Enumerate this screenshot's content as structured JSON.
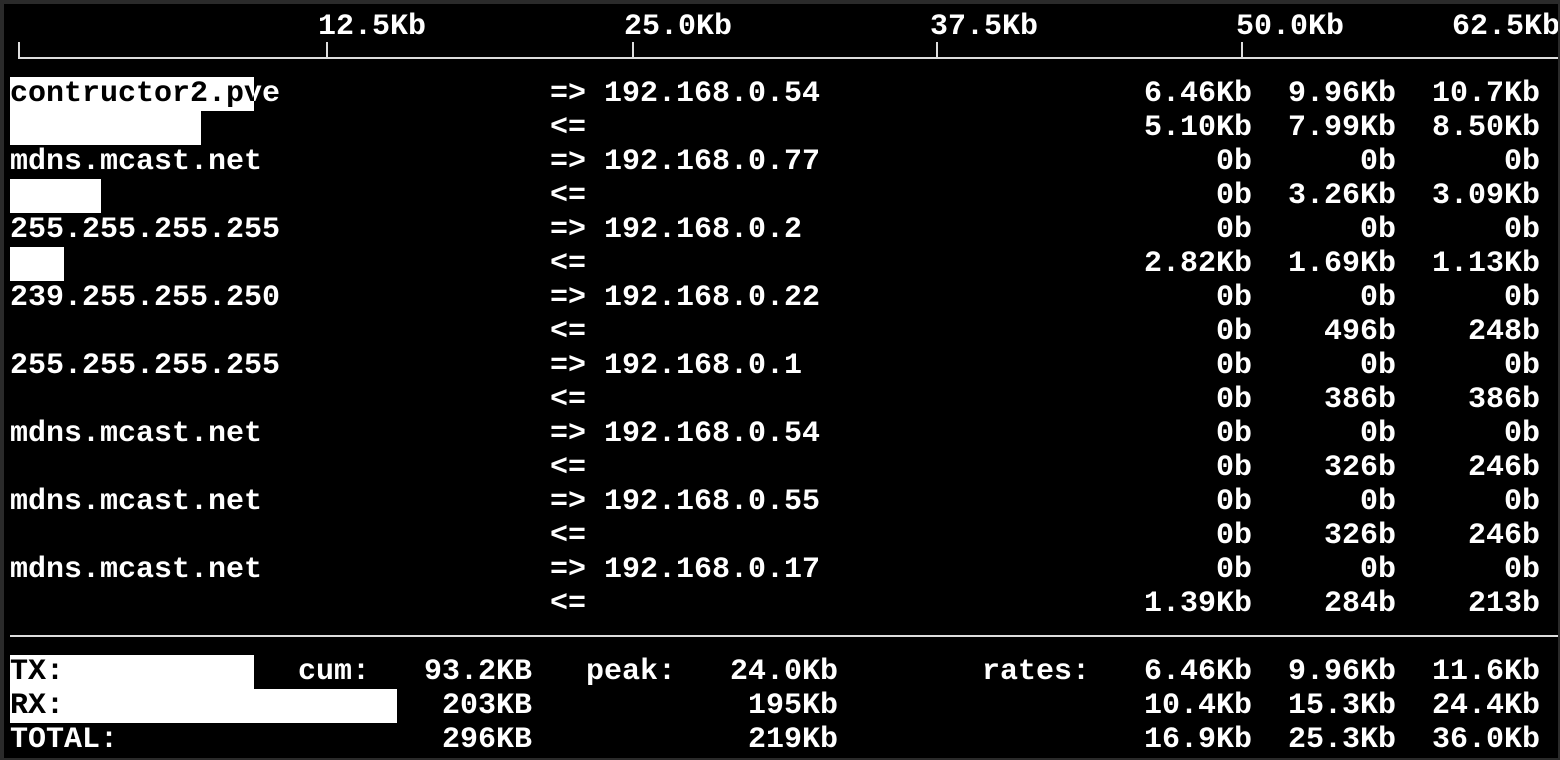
{
  "scale": {
    "max_kb": 62.5,
    "ticks": [
      "12.5Kb",
      "25.0Kb",
      "37.5Kb",
      "50.0Kb",
      "62.5Kb"
    ]
  },
  "rows": [
    {
      "host": "contructor2.pve",
      "dir": "=>",
      "peer": "192.168.0.54",
      "r2": "6.46Kb",
      "r10": "9.96Kb",
      "r40": "10.7Kb",
      "bar_kb": 9.96
    },
    {
      "host": "",
      "dir": "<=",
      "peer": "",
      "r2": "5.10Kb",
      "r10": "7.99Kb",
      "r40": "8.50Kb",
      "bar_kb": 7.8
    },
    {
      "host": "mdns.mcast.net",
      "dir": "=>",
      "peer": "192.168.0.77",
      "r2": "0b",
      "r10": "0b",
      "r40": "0b",
      "bar_kb": 0
    },
    {
      "host": "",
      "dir": "<=",
      "peer": "",
      "r2": "0b",
      "r10": "3.26Kb",
      "r40": "3.09Kb",
      "bar_kb": 3.7
    },
    {
      "host": "255.255.255.255",
      "dir": "=>",
      "peer": "192.168.0.2",
      "r2": "0b",
      "r10": "0b",
      "r40": "0b",
      "bar_kb": 0
    },
    {
      "host": "",
      "dir": "<=",
      "peer": "",
      "r2": "2.82Kb",
      "r10": "1.69Kb",
      "r40": "1.13Kb",
      "bar_kb": 2.2
    },
    {
      "host": "239.255.255.250",
      "dir": "=>",
      "peer": "192.168.0.22",
      "r2": "0b",
      "r10": "0b",
      "r40": "0b",
      "bar_kb": 0
    },
    {
      "host": "",
      "dir": "<=",
      "peer": "",
      "r2": "0b",
      "r10": "496b",
      "r40": "248b",
      "bar_kb": 0
    },
    {
      "host": "255.255.255.255",
      "dir": "=>",
      "peer": "192.168.0.1",
      "r2": "0b",
      "r10": "0b",
      "r40": "0b",
      "bar_kb": 0
    },
    {
      "host": "",
      "dir": "<=",
      "peer": "",
      "r2": "0b",
      "r10": "386b",
      "r40": "386b",
      "bar_kb": 0
    },
    {
      "host": "mdns.mcast.net",
      "dir": "=>",
      "peer": "192.168.0.54",
      "r2": "0b",
      "r10": "0b",
      "r40": "0b",
      "bar_kb": 0
    },
    {
      "host": "",
      "dir": "<=",
      "peer": "",
      "r2": "0b",
      "r10": "326b",
      "r40": "246b",
      "bar_kb": 0
    },
    {
      "host": "mdns.mcast.net",
      "dir": "=>",
      "peer": "192.168.0.55",
      "r2": "0b",
      "r10": "0b",
      "r40": "0b",
      "bar_kb": 0
    },
    {
      "host": "",
      "dir": "<=",
      "peer": "",
      "r2": "0b",
      "r10": "326b",
      "r40": "246b",
      "bar_kb": 0
    },
    {
      "host": "mdns.mcast.net",
      "dir": "=>",
      "peer": "192.168.0.17",
      "r2": "0b",
      "r10": "0b",
      "r40": "0b",
      "bar_kb": 0
    },
    {
      "host": "",
      "dir": "<=",
      "peer": "",
      "r2": "1.39Kb",
      "r10": "284b",
      "r40": "213b",
      "bar_kb": 0
    }
  ],
  "totals": {
    "cum_label": "cum:",
    "peak_label": "peak:",
    "rates_label": "rates:",
    "rows": [
      {
        "label": "TX:",
        "cum": "93.2KB",
        "peak": "24.0Kb",
        "r2": "6.46Kb",
        "r10": "9.96Kb",
        "r40": "11.6Kb",
        "bar_kb": 9.96
      },
      {
        "label": "RX:",
        "cum": "203KB",
        "peak": "195Kb",
        "r2": "10.4Kb",
        "r10": "15.3Kb",
        "r40": "24.4Kb",
        "bar_kb": 15.8
      },
      {
        "label": "TOTAL:",
        "cum": "296KB",
        "peak": "219Kb",
        "r2": "16.9Kb",
        "r10": "25.3Kb",
        "r40": "36.0Kb",
        "bar_kb": 0
      }
    ]
  }
}
